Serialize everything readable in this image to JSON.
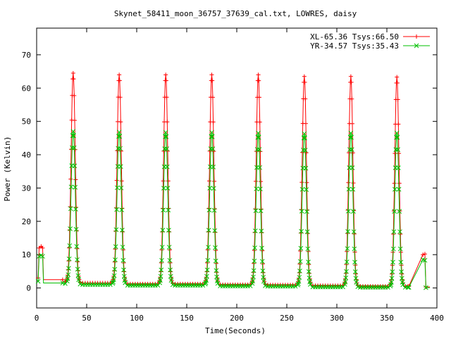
{
  "chart_data": {
    "type": "line",
    "title": "Skynet_58411_moon_36757_37639_cal.txt, LOWRES, daisy",
    "xlabel": "Time(Seconds)",
    "ylabel": "Power (Kelvin)",
    "xlim": [
      0,
      400
    ],
    "ylim": [
      -6,
      78
    ],
    "x_ticks": [
      0,
      50,
      100,
      150,
      200,
      250,
      300,
      350,
      400
    ],
    "y_ticks": [
      0,
      10,
      20,
      30,
      40,
      50,
      60,
      70
    ],
    "grid": false,
    "legend_position": "top-right",
    "peak_times": [
      36.5,
      82.5,
      129,
      175,
      221.5,
      267.5,
      314,
      360
    ],
    "series": [
      {
        "name": "XL-65.36 Tsys:66.50",
        "color": "#ff0000",
        "marker": "plus",
        "start": [
          [
            1.5,
            3
          ],
          [
            2.5,
            12
          ],
          [
            4.5,
            12.5
          ],
          [
            6,
            12
          ],
          [
            6.8,
            2.5
          ],
          [
            26,
            2.5
          ]
        ],
        "peaks": [
          64.5,
          64,
          64,
          64,
          64,
          63.5,
          63.5,
          63.3
        ],
        "baselines": [
          1.8,
          1.5,
          1.2,
          1.2,
          1.0,
          0.9,
          0.7,
          0.5,
          0.5
        ],
        "end": [
          [
            372,
            0.5
          ],
          [
            386,
            10
          ],
          [
            388,
            10.2
          ],
          [
            389,
            0.3
          ],
          [
            393,
            0.3
          ]
        ]
      },
      {
        "name": "YR-34.57 Tsys:35.43",
        "color": "#00c000",
        "marker": "x",
        "start": [
          [
            1.5,
            2
          ],
          [
            2.5,
            9.5
          ],
          [
            4.5,
            9.8
          ],
          [
            6,
            9.5
          ],
          [
            6.8,
            1.5
          ],
          [
            26,
            1.5
          ]
        ],
        "peaks": [
          47,
          46.8,
          46.7,
          46.7,
          46.5,
          46.3,
          46.5,
          46.5
        ],
        "baselines": [
          1.3,
          1.0,
          0.8,
          0.8,
          0.6,
          0.5,
          0.3,
          0.2,
          0.2
        ],
        "end": [
          [
            372,
            0.2
          ],
          [
            386,
            8.5
          ],
          [
            388,
            8.3
          ],
          [
            389,
            0.1
          ],
          [
            393,
            0.1
          ]
        ]
      }
    ]
  }
}
